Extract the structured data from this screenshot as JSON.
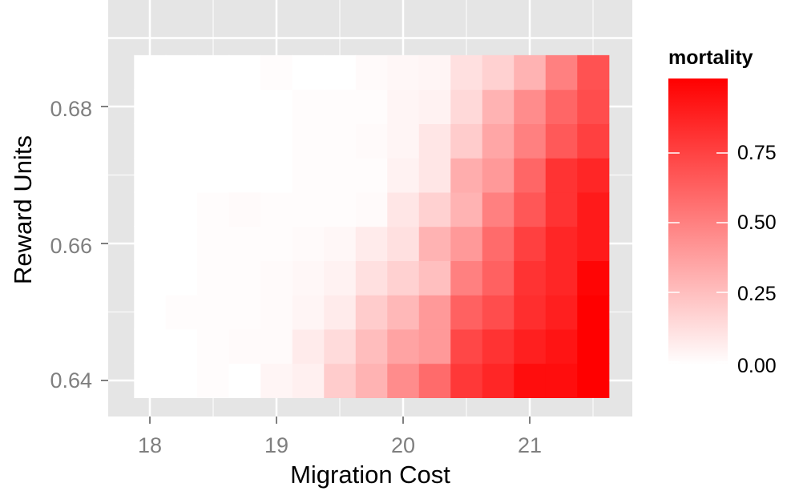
{
  "chart_data": {
    "type": "heatmap",
    "xlabel": "Migration Cost",
    "ylabel": "Reward Units",
    "x_ticks": [
      "18",
      "19",
      "20",
      "21"
    ],
    "y_ticks": [
      "0.64",
      "0.66",
      "0.68"
    ],
    "x_centers": [
      18.0,
      18.25,
      18.5,
      18.75,
      19.0,
      19.25,
      19.5,
      19.75,
      20.0,
      20.25,
      20.5,
      20.75,
      21.0,
      21.25,
      21.5
    ],
    "y_centers": [
      0.64,
      0.645,
      0.65,
      0.655,
      0.66,
      0.665,
      0.67,
      0.675,
      0.68,
      0.685
    ],
    "fill_range": [
      0,
      1
    ],
    "low_color": "#ffffff",
    "high_color": "#ff0000",
    "panel_color": "#e5e5e5",
    "grid_color": "#ffffff",
    "legend": {
      "title": "mortality",
      "breaks": [
        "0.00",
        "0.25",
        "0.50",
        "0.75"
      ],
      "placement": "right"
    },
    "values": [
      [
        0.0,
        0.0,
        0.01,
        0.0,
        0.04,
        0.06,
        0.2,
        0.3,
        0.45,
        0.58,
        0.78,
        0.85,
        0.95,
        0.95,
        1.0
      ],
      [
        0.0,
        0.0,
        0.01,
        0.02,
        0.02,
        0.08,
        0.14,
        0.26,
        0.36,
        0.4,
        0.72,
        0.8,
        0.88,
        0.92,
        1.0
      ],
      [
        0.0,
        0.01,
        0.01,
        0.01,
        0.02,
        0.04,
        0.08,
        0.2,
        0.28,
        0.4,
        0.62,
        0.7,
        0.82,
        0.88,
        1.0
      ],
      [
        0.0,
        0.0,
        0.01,
        0.01,
        0.02,
        0.03,
        0.05,
        0.12,
        0.18,
        0.25,
        0.5,
        0.62,
        0.8,
        0.85,
        0.98
      ],
      [
        0.0,
        0.0,
        0.01,
        0.01,
        0.01,
        0.02,
        0.03,
        0.08,
        0.12,
        0.3,
        0.4,
        0.58,
        0.75,
        0.85,
        0.9
      ],
      [
        0.0,
        0.0,
        0.01,
        0.02,
        0.01,
        0.01,
        0.01,
        0.02,
        0.1,
        0.18,
        0.3,
        0.5,
        0.66,
        0.8,
        0.9
      ],
      [
        0.0,
        0.0,
        0.0,
        0.0,
        0.0,
        0.01,
        0.01,
        0.01,
        0.05,
        0.1,
        0.32,
        0.4,
        0.6,
        0.8,
        0.85
      ],
      [
        0.0,
        0.0,
        0.0,
        0.0,
        0.0,
        0.01,
        0.01,
        0.02,
        0.04,
        0.1,
        0.2,
        0.35,
        0.5,
        0.65,
        0.75
      ],
      [
        0.0,
        0.0,
        0.0,
        0.0,
        0.0,
        0.01,
        0.01,
        0.01,
        0.04,
        0.05,
        0.15,
        0.3,
        0.45,
        0.6,
        0.7
      ],
      [
        0.0,
        0.0,
        0.0,
        0.0,
        0.01,
        0.0,
        0.0,
        0.02,
        0.03,
        0.04,
        0.12,
        0.18,
        0.3,
        0.5,
        0.68
      ]
    ]
  }
}
